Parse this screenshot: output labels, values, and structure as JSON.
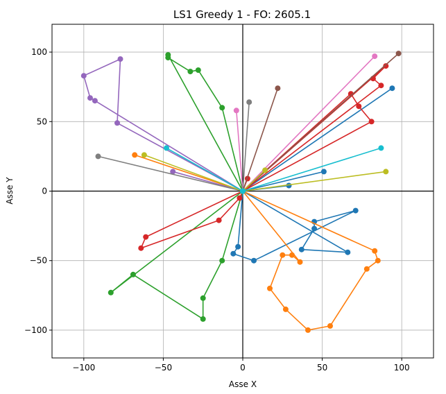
{
  "chart_data": {
    "type": "line",
    "title": "LS1 Greedy 1 - FO: 2605.1",
    "xlabel": "Asse X",
    "ylabel": "Asse Y",
    "xlim": [
      -120,
      120
    ],
    "ylim": [
      -120,
      120
    ],
    "xticks": [
      -100,
      -50,
      0,
      50,
      100
    ],
    "yticks": [
      -100,
      -50,
      0,
      50,
      100
    ],
    "xtick_labels": [
      "−100",
      "−50",
      "0",
      "50",
      "100"
    ],
    "ytick_labels": [
      "−100",
      "−50",
      "0",
      "50",
      "100"
    ],
    "grid": true,
    "zero_lines": true,
    "depot": [
      0,
      0
    ],
    "series": [
      {
        "color": "#1f77b4",
        "points": [
          [
            0,
            0
          ],
          [
            94,
            74
          ],
          [
            0,
            0
          ],
          [
            29,
            4
          ],
          [
            0,
            0
          ],
          [
            51,
            14
          ],
          [
            0,
            0
          ],
          [
            66,
            -44
          ],
          [
            37,
            -42
          ],
          [
            45,
            -27
          ],
          [
            45,
            -22
          ],
          [
            71,
            -14
          ],
          [
            7,
            -50
          ],
          [
            -6,
            -45
          ],
          [
            -3,
            -40
          ],
          [
            0,
            0
          ]
        ]
      },
      {
        "color": "#ff7f0e",
        "points": [
          [
            0,
            0
          ],
          [
            -68,
            26
          ],
          [
            0,
            0
          ],
          [
            83,
            -43
          ],
          [
            85,
            -50
          ],
          [
            78,
            -56
          ],
          [
            55,
            -97
          ],
          [
            41,
            -100
          ],
          [
            27,
            -85
          ],
          [
            17,
            -70
          ],
          [
            25,
            -46
          ],
          [
            31,
            -46
          ],
          [
            36,
            -51
          ],
          [
            0,
            0
          ]
        ]
      },
      {
        "color": "#2ca02c",
        "points": [
          [
            0,
            0
          ],
          [
            -47,
            98
          ],
          [
            -47,
            96
          ],
          [
            -33,
            86
          ],
          [
            -28,
            87
          ],
          [
            -13,
            60
          ],
          [
            0,
            0
          ],
          [
            -13,
            -50
          ],
          [
            -25,
            -77
          ],
          [
            -25,
            -92
          ],
          [
            -69,
            -60
          ],
          [
            -83,
            -73
          ],
          [
            0,
            0
          ]
        ]
      },
      {
        "color": "#d62728",
        "points": [
          [
            0,
            0
          ],
          [
            87,
            76
          ],
          [
            82,
            81
          ],
          [
            90,
            90
          ],
          [
            0,
            0
          ],
          [
            68,
            70
          ],
          [
            73,
            61
          ],
          [
            81,
            50
          ],
          [
            0,
            0
          ],
          [
            3,
            9
          ],
          [
            0,
            0
          ],
          [
            -2,
            -5
          ],
          [
            -15,
            -21
          ],
          [
            -64,
            -41
          ],
          [
            -61,
            -33
          ],
          [
            0,
            0
          ]
        ]
      },
      {
        "color": "#9467bd",
        "points": [
          [
            0,
            0
          ],
          [
            -44,
            14
          ],
          [
            0,
            0
          ],
          [
            -79,
            49
          ],
          [
            -77,
            95
          ],
          [
            -100,
            83
          ],
          [
            -96,
            67
          ],
          [
            -93,
            65
          ],
          [
            0,
            0
          ]
        ]
      },
      {
        "color": "#8c564b",
        "points": [
          [
            0,
            0
          ],
          [
            22,
            74
          ],
          [
            0,
            0
          ],
          [
            98,
            99
          ],
          [
            0,
            0
          ]
        ]
      },
      {
        "color": "#e377c2",
        "points": [
          [
            0,
            0
          ],
          [
            -4,
            58
          ],
          [
            0,
            0
          ],
          [
            83,
            97
          ],
          [
            0,
            0
          ]
        ]
      },
      {
        "color": "#7f7f7f",
        "points": [
          [
            0,
            0
          ],
          [
            4,
            64
          ],
          [
            0,
            0
          ],
          [
            -91,
            25
          ],
          [
            0,
            0
          ]
        ]
      },
      {
        "color": "#bcbd22",
        "points": [
          [
            0,
            0
          ],
          [
            14,
            15
          ],
          [
            0,
            0
          ],
          [
            -62,
            26
          ],
          [
            0,
            0
          ],
          [
            90,
            14
          ],
          [
            0,
            0
          ]
        ]
      },
      {
        "color": "#17becf",
        "points": [
          [
            0,
            0
          ],
          [
            -48,
            31
          ],
          [
            0,
            0
          ],
          [
            87,
            31
          ],
          [
            0,
            0
          ]
        ]
      }
    ]
  }
}
